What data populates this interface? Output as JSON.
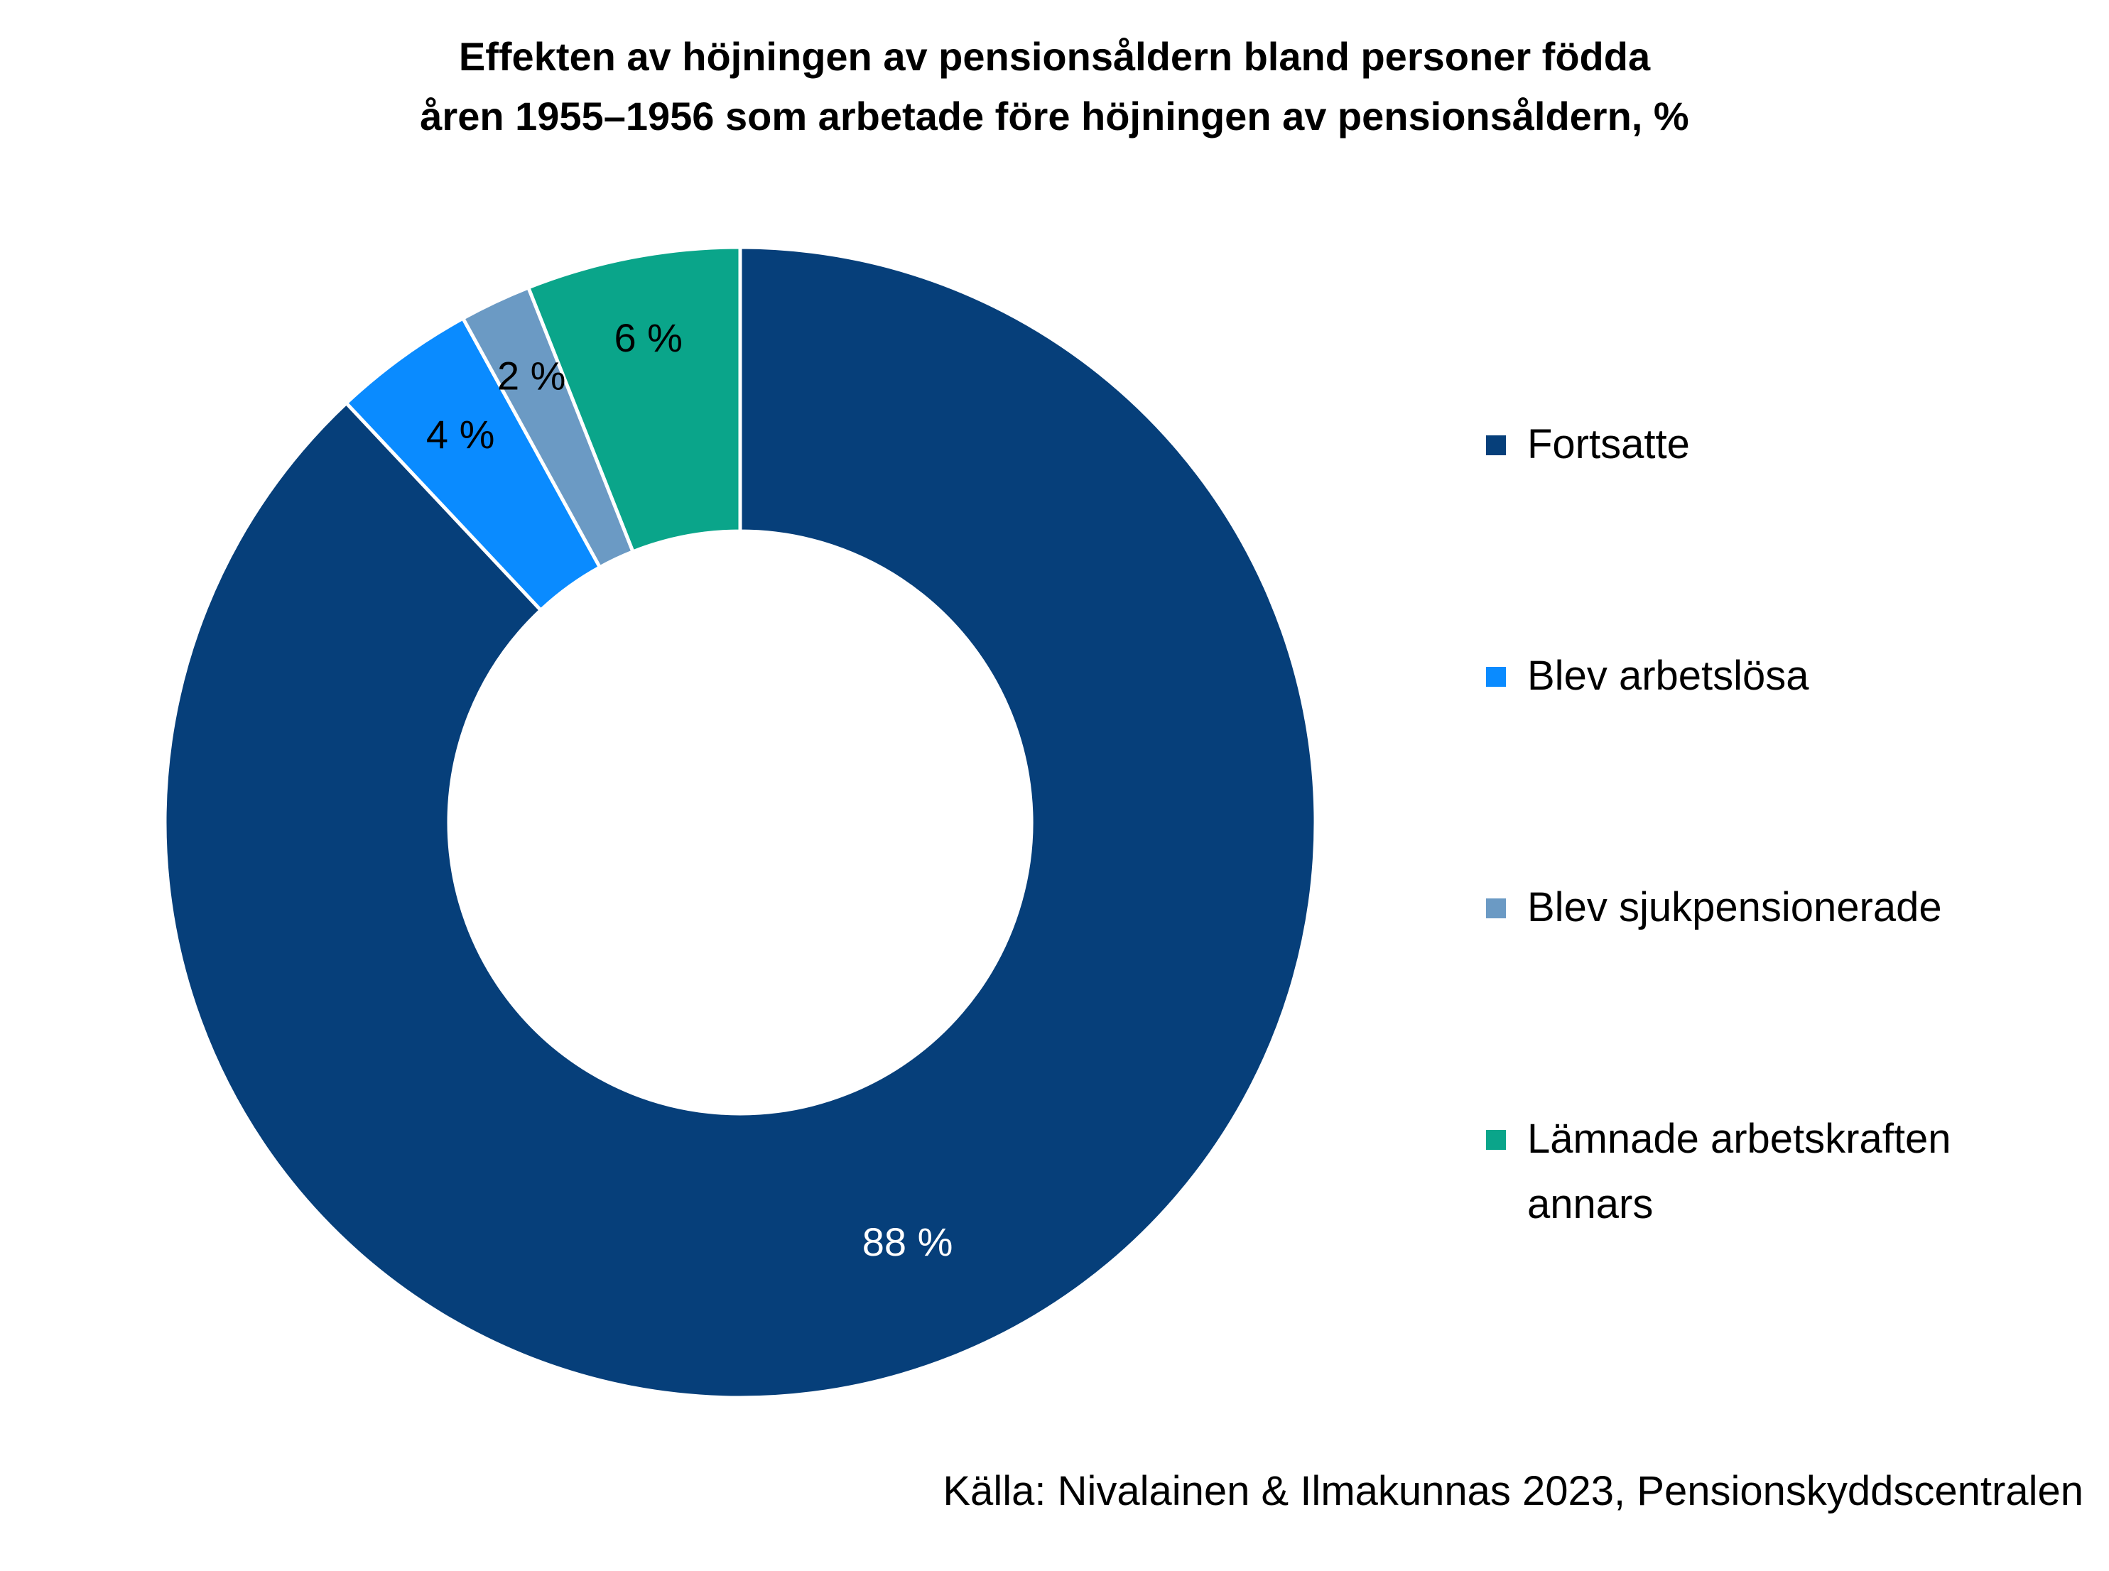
{
  "chart_data": {
    "type": "pie",
    "donut": true,
    "title_lines": [
      "Effekten av höjningen av pensionsåldern bland personer födda",
      "åren 1955–1956 som arbetade före höjningen av pensionsåldern, %"
    ],
    "categories": [
      "Fortsatte",
      "Blev arbetslösa",
      "Blev sjukpensionerade",
      "Lämnade arbetskraften annars"
    ],
    "values": [
      88,
      4,
      2,
      6
    ],
    "data_labels": [
      "88 %",
      "4 %",
      "2 %",
      "6 %"
    ],
    "colors": [
      "#063f7a",
      "#0a8bff",
      "#6b9ac4",
      "#0aa58a"
    ],
    "label_colors": [
      "#ffffff",
      "#000000",
      "#000000",
      "#000000"
    ],
    "legend_position": "right",
    "source": "Källa: Nivalainen & Ilmakunnas 2023, Pensionskyddscentralen"
  }
}
